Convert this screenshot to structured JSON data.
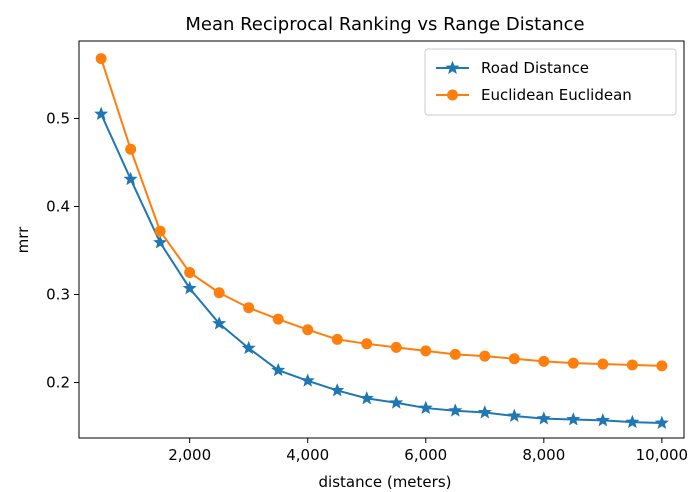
{
  "chart_data": {
    "type": "line",
    "title": "Mean Reciprocal Ranking vs Range Distance",
    "xlabel": "distance (meters)",
    "ylabel": "mrr",
    "xlim": [
      125,
      10375
    ],
    "ylim": [
      0.137,
      0.588
    ],
    "xticks": [
      2000,
      4000,
      6000,
      8000,
      10000
    ],
    "xtick_labels": [
      "2,000",
      "4,000",
      "6,000",
      "8,000",
      "10,000"
    ],
    "yticks": [
      0.2,
      0.3,
      0.4,
      0.5
    ],
    "ytick_labels": [
      "0.2",
      "0.3",
      "0.4",
      "0.5"
    ],
    "grid": false,
    "legend_position": "top-right",
    "x": [
      500,
      1000,
      1500,
      2000,
      2500,
      3000,
      3500,
      4000,
      4500,
      5000,
      5500,
      6000,
      6500,
      7000,
      7500,
      8000,
      8500,
      9000,
      9500,
      10000
    ],
    "series": [
      {
        "name": "Road Distance",
        "color": "#1f77b4",
        "marker": "star",
        "values": [
          0.505,
          0.431,
          0.359,
          0.307,
          0.267,
          0.239,
          0.214,
          0.202,
          0.191,
          0.182,
          0.177,
          0.171,
          0.168,
          0.166,
          0.162,
          0.159,
          0.158,
          0.157,
          0.155,
          0.154
        ]
      },
      {
        "name": "Euclidean Euclidean",
        "color": "#ff7f0e",
        "marker": "circle",
        "values": [
          0.568,
          0.465,
          0.372,
          0.325,
          0.302,
          0.285,
          0.272,
          0.26,
          0.249,
          0.244,
          0.24,
          0.236,
          0.232,
          0.23,
          0.227,
          0.224,
          0.222,
          0.221,
          0.22,
          0.219
        ]
      }
    ]
  }
}
